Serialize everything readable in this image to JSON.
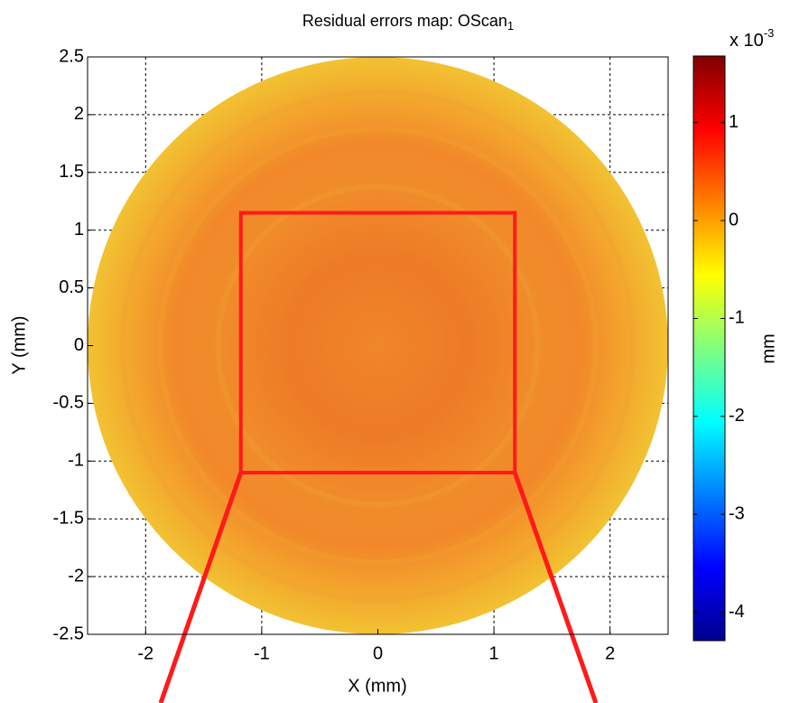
{
  "chart_data": {
    "type": "heatmap",
    "title": "Residual errors map: OScan",
    "title_subscript": "1",
    "xlabel": "X (mm)",
    "ylabel": "Y (mm)",
    "xlim": [
      -2.5,
      2.5
    ],
    "xticks": [
      -2,
      -1,
      0,
      1,
      2
    ],
    "ylim": [
      -2.5,
      2.5
    ],
    "yticks": [
      -2.5,
      -2,
      -1.5,
      -1,
      -0.5,
      0,
      0.5,
      1,
      1.5,
      2,
      2.5
    ],
    "grid": true,
    "disk_radius": 2.5,
    "highlight_box": {
      "x": [
        -1.18,
        1.18
      ],
      "y": [
        -1.1,
        1.15
      ],
      "color": "#ff1a1a"
    },
    "colorbar": {
      "label": "mm",
      "multiplier": "x 10",
      "exponent": "-3",
      "clim": [
        -4.29,
        1.68
      ],
      "ticks": [
        -4,
        -3,
        -2,
        -1,
        0,
        1
      ],
      "colormap": "jet"
    }
  }
}
